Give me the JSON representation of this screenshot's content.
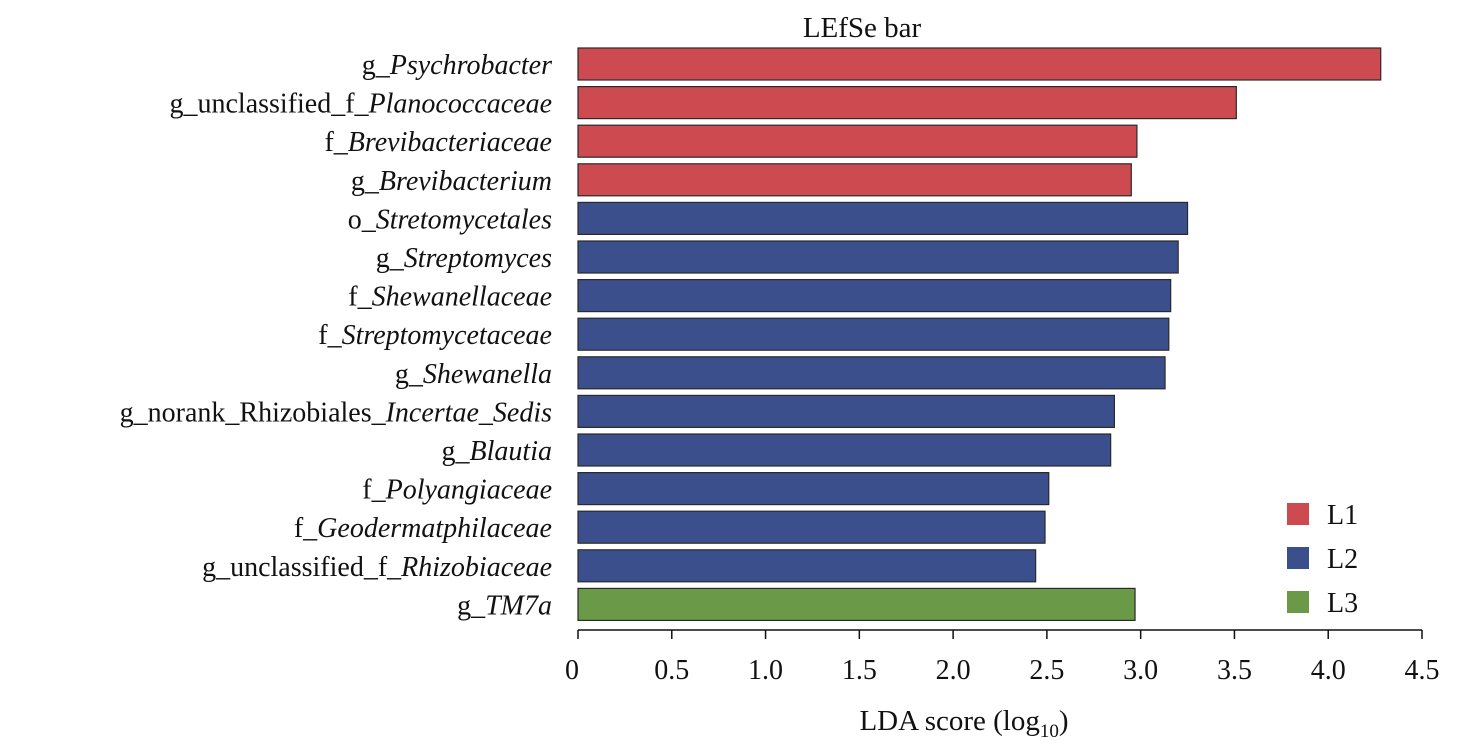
{
  "chart_data": {
    "type": "bar",
    "orientation": "horizontal",
    "title": "LEfSe bar",
    "xlabel": "LDA score (log10)",
    "xlabel_main": "LDA score (log",
    "xlabel_sub": "10",
    "xlabel_close": ")",
    "xlim": [
      0,
      4.5
    ],
    "xticks": [
      "0",
      "0.5",
      "1.0",
      "1.5",
      "2.0",
      "2.5",
      "3.0",
      "3.5",
      "4.0",
      "4.5"
    ],
    "grid": false,
    "legend_position": "bottom-right",
    "groups": [
      {
        "name": "L1",
        "color": "#cc4a50"
      },
      {
        "name": "L2",
        "color": "#3b4f8c"
      },
      {
        "name": "L3",
        "color": "#6a9a48"
      }
    ],
    "bars": [
      {
        "label": "g_Psychrobacter",
        "prefix": "g_",
        "italic": "Psychrobacter",
        "value": 4.28,
        "group": "L1"
      },
      {
        "label": "g_unclassified_f_Planococcaceae",
        "prefix": "g_unclassified_f_",
        "italic": "Planococcaceae",
        "value": 3.51,
        "group": "L1"
      },
      {
        "label": "f_Brevibacteriaceae",
        "prefix": "f_",
        "italic": "Brevibacteriaceae",
        "value": 2.98,
        "group": "L1"
      },
      {
        "label": "g_Brevibacterium",
        "prefix": "g_",
        "italic": "Brevibacterium",
        "value": 2.95,
        "group": "L1"
      },
      {
        "label": "o_Stretomycetales",
        "prefix": "o_",
        "italic": "Stretomycetales",
        "value": 3.25,
        "group": "L2"
      },
      {
        "label": "g_Streptomyces",
        "prefix": "g_",
        "italic": "Streptomyces",
        "value": 3.2,
        "group": "L2"
      },
      {
        "label": "f_Shewanellaceae",
        "prefix": "f_",
        "italic": "Shewanellaceae",
        "value": 3.16,
        "group": "L2"
      },
      {
        "label": "f_Streptomycetaceae",
        "prefix": "f_",
        "italic": "Streptomycetaceae",
        "value": 3.15,
        "group": "L2"
      },
      {
        "label": "g_Shewanella",
        "prefix": "g_",
        "italic": "Shewanella",
        "value": 3.13,
        "group": "L2"
      },
      {
        "label": "g_norank_Rhizobiales_Incertae_Sedis",
        "prefix": "g_norank_Rhizobiales_",
        "italic": "Incertae_Sedis",
        "value": 2.86,
        "group": "L2"
      },
      {
        "label": "g_Blautia",
        "prefix": "g_",
        "italic": "Blautia",
        "value": 2.84,
        "group": "L2"
      },
      {
        "label": "f_Polyangiaceae",
        "prefix": "f_",
        "italic": "Polyangiaceae",
        "value": 2.51,
        "group": "L2"
      },
      {
        "label": "f_Geodermatphilaceae",
        "prefix": "f_",
        "italic": "Geodermatphilaceae",
        "value": 2.49,
        "group": "L2"
      },
      {
        "label": "g_unclassified_f_Rhizobiaceae",
        "prefix": "g_unclassified_f_",
        "italic": "Rhizobiaceae",
        "value": 2.44,
        "group": "L2"
      },
      {
        "label": "g_TM7a",
        "prefix": "g_",
        "italic": "TM7a",
        "value": 2.97,
        "group": "L3"
      }
    ]
  }
}
